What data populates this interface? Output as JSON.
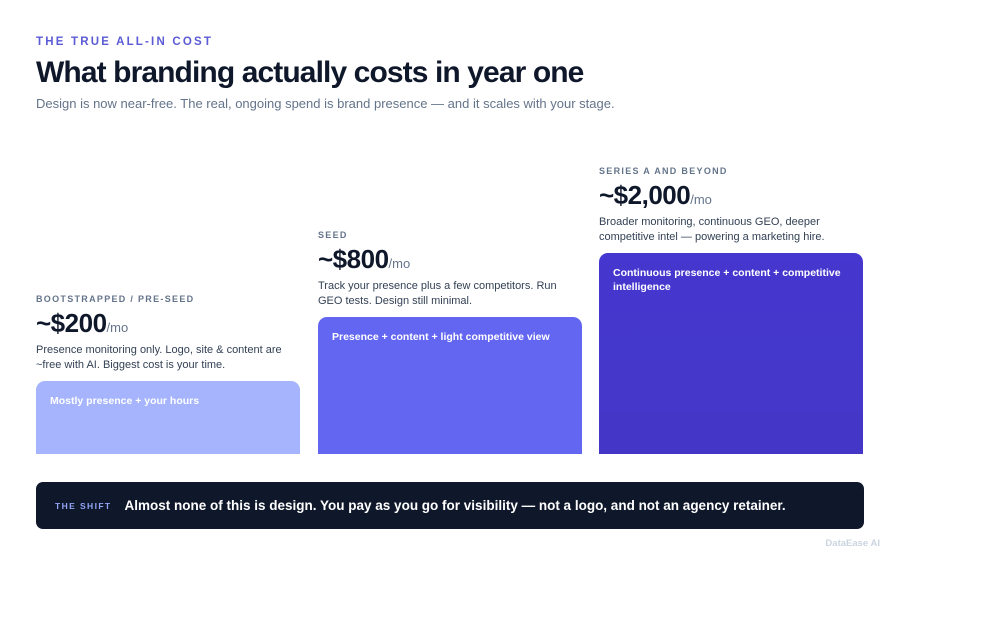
{
  "header": {
    "eyebrow": "THE TRUE ALL-IN COST",
    "title": "What branding actually costs in year one",
    "subtitle": "Design is now near-free. The real, ongoing spend is brand presence — and it scales with your stage."
  },
  "chart_data": {
    "type": "bar",
    "categories": [
      "BOOTSTRAPPED / PRE-SEED",
      "SEED",
      "SERIES A AND BEYOND"
    ],
    "values": [
      200,
      800,
      2000
    ],
    "unit": "/mo",
    "price_labels": [
      "~$200",
      "~$800",
      "~$2,000"
    ],
    "descriptions": [
      "Presence monitoring only. Logo, site & content are ~free with AI. Biggest cost is your time.",
      "Track your presence plus a few competitors. Run GEO tests. Design still minimal.",
      "Broader monitoring, continuous GEO, deeper competitive intel — powering a marketing hire."
    ],
    "bar_labels": [
      "Mostly presence + your hours",
      "Presence + content + light competitive view",
      "Continuous presence + content + competitive intelligence"
    ],
    "bar_colors": [
      "#a5b4fc",
      "#6366f1",
      "#4537cf"
    ],
    "title": "What branding actually costs in year one",
    "xlabel": "",
    "ylabel": "",
    "grid": false,
    "legend": "none"
  },
  "shift": {
    "tag": "THE SHIFT",
    "text": "Almost none of this is design. You pay as you go for visibility — not a logo, and not an agency retainer."
  },
  "brand": "DataEase AI"
}
